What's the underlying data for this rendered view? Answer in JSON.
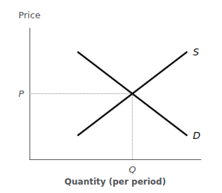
{
  "chart_data": {
    "type": "line",
    "xlabel": "Quantity (per period)",
    "ylabel": "Price",
    "xlim": [
      0,
      1.0
    ],
    "ylim": [
      0,
      1.0
    ],
    "xticks": [
      {
        "value": 0.6,
        "label": "Q"
      }
    ],
    "yticks": [
      {
        "value": 0.5,
        "label": "P"
      }
    ],
    "grid": false,
    "series": [
      {
        "name": "D",
        "x": [
          0.28,
          0.92
        ],
        "values": [
          0.82,
          0.18
        ],
        "color": "#111111"
      },
      {
        "name": "S",
        "x": [
          0.28,
          0.92
        ],
        "values": [
          0.18,
          0.82
        ],
        "color": "#111111"
      }
    ],
    "intersection": {
      "x": 0.6,
      "y": 0.5,
      "color": "#888888",
      "line_style": "dotted"
    }
  }
}
